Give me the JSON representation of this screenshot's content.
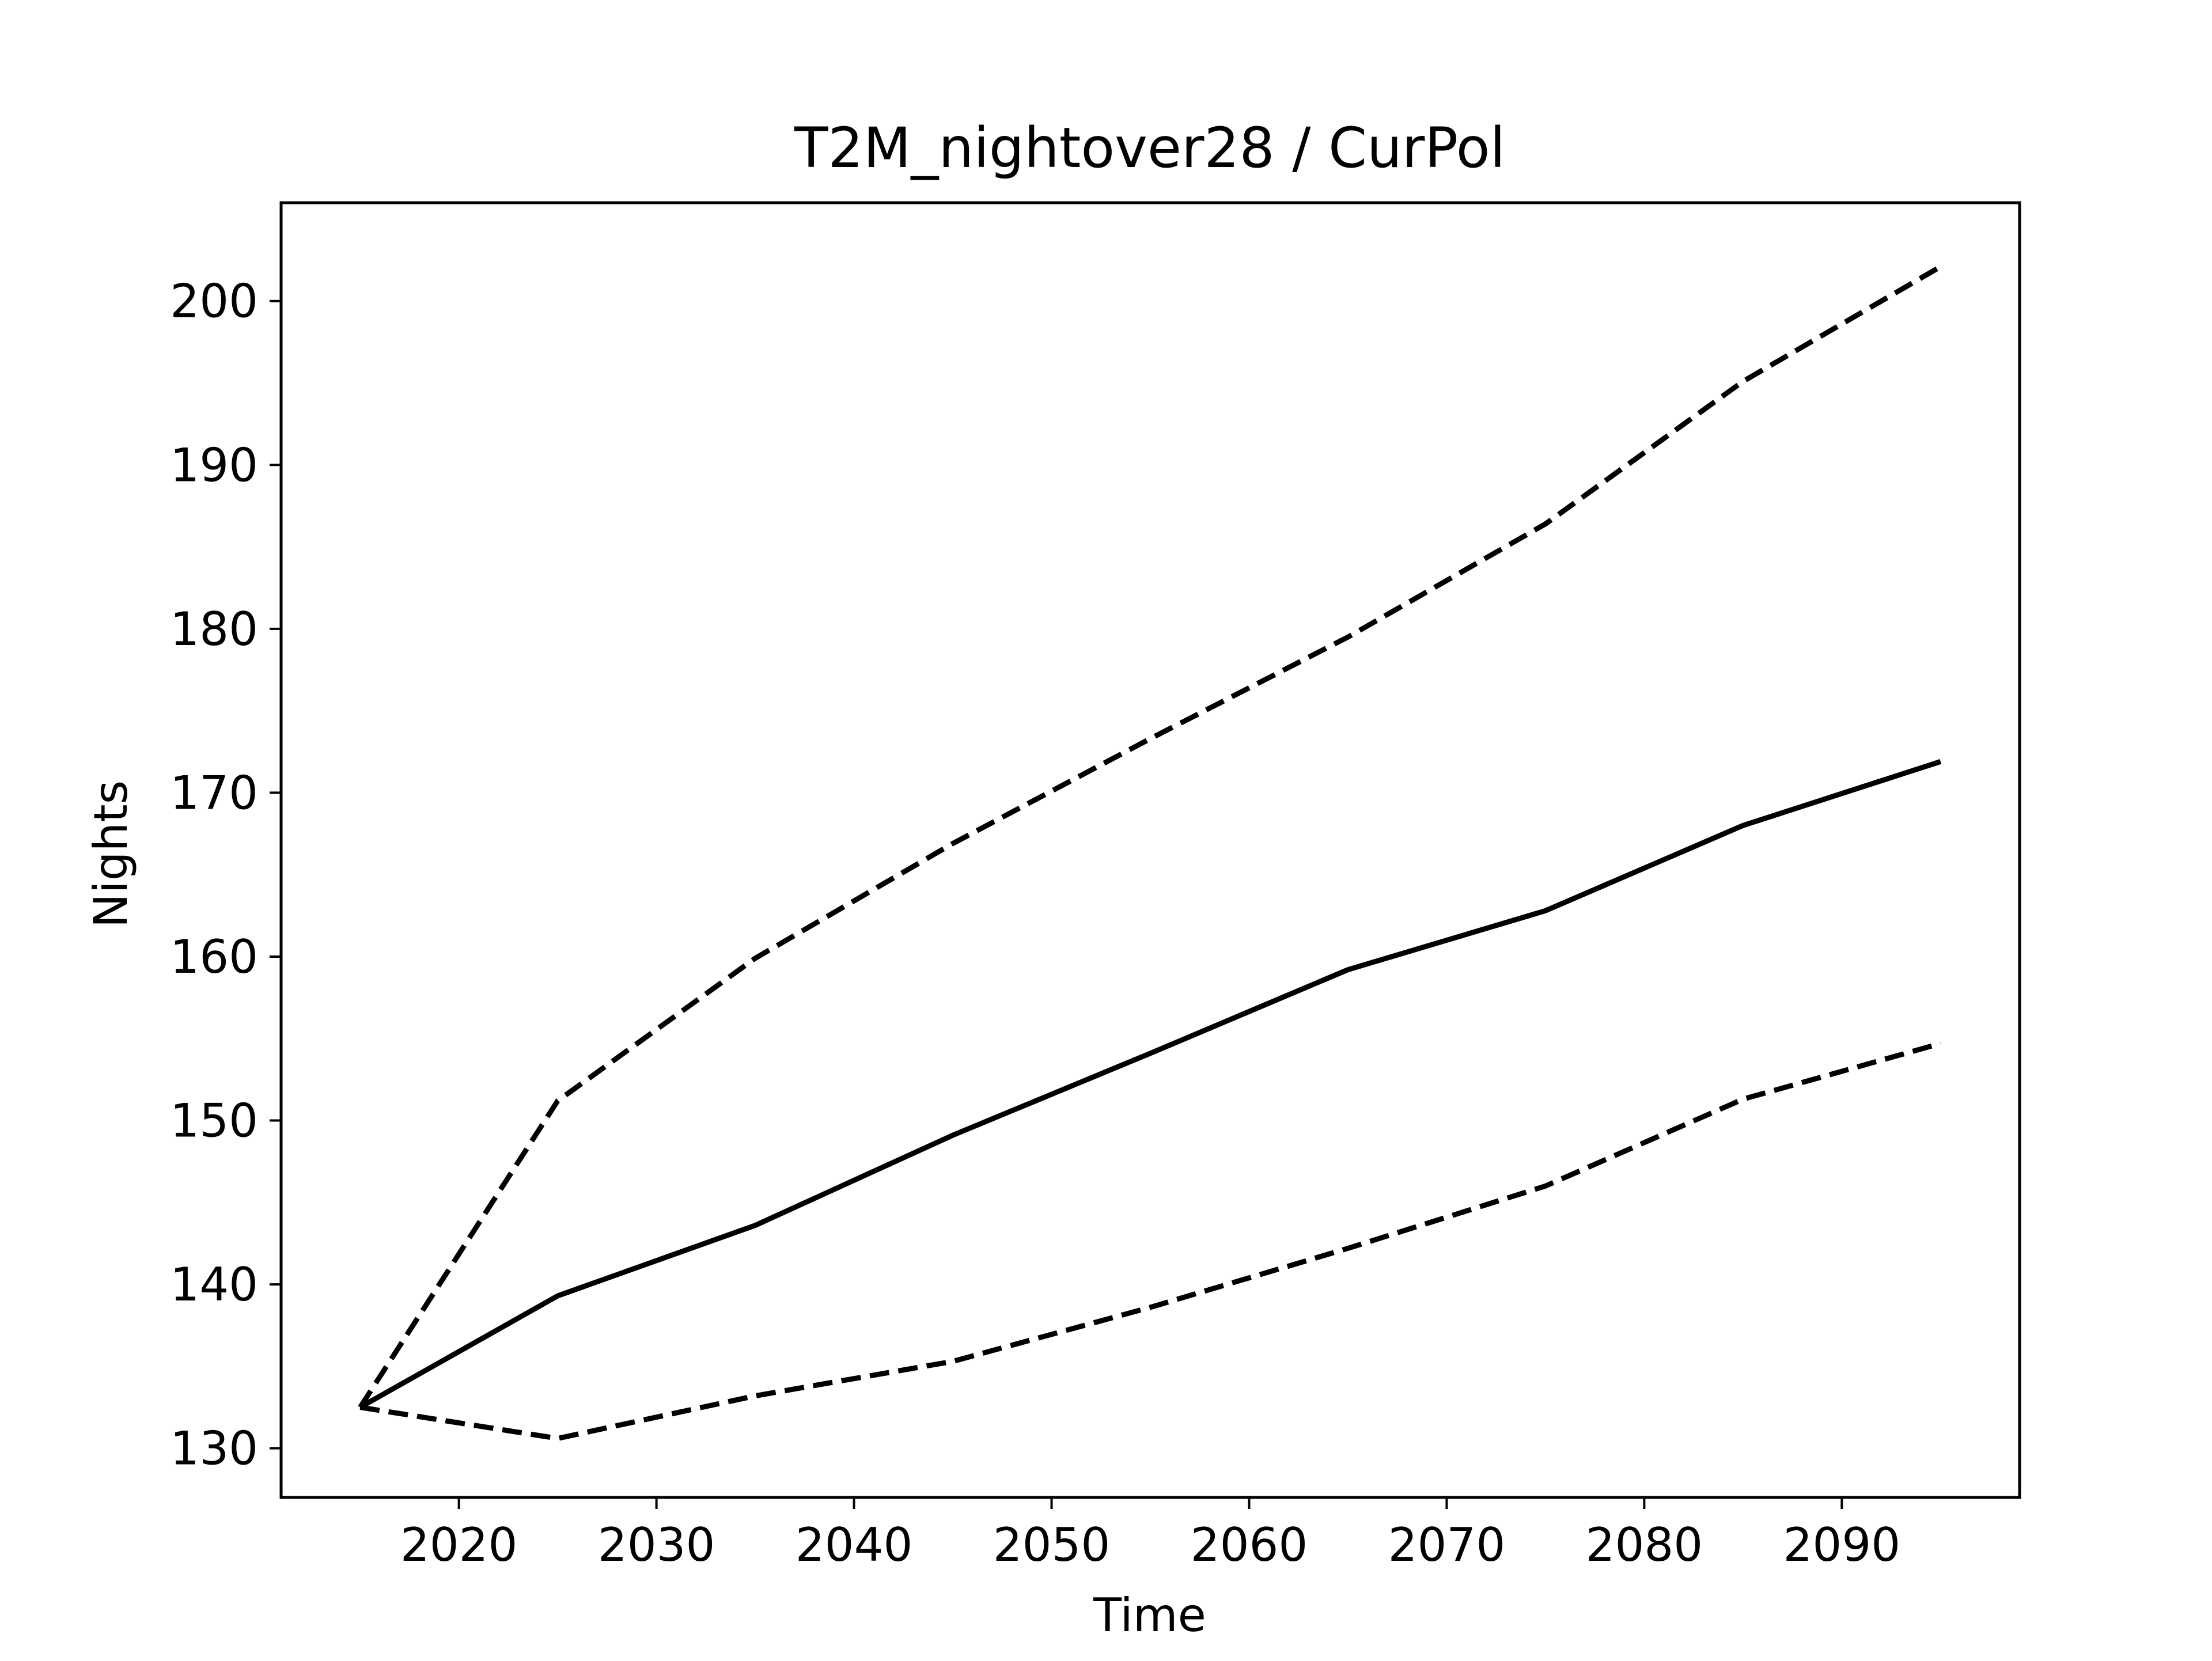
{
  "chart_data": {
    "type": "line",
    "title": "T2M_nightover28 / CurPol",
    "xlabel": "Time",
    "ylabel": "Nights",
    "xlim": [
      2011,
      2099
    ],
    "ylim": [
      127,
      206
    ],
    "x_ticks": [
      2020,
      2030,
      2040,
      2050,
      2060,
      2070,
      2080,
      2090
    ],
    "y_ticks": [
      130,
      140,
      150,
      160,
      170,
      180,
      190,
      200
    ],
    "x_tick_labels": [
      "2020",
      "2030",
      "2040",
      "2050",
      "2060",
      "2070",
      "2080",
      "2090"
    ],
    "y_tick_labels": [
      "130",
      "140",
      "150",
      "160",
      "170",
      "180",
      "190",
      "200"
    ],
    "grid": false,
    "legend": "none",
    "x": [
      2015,
      2025,
      2035,
      2045,
      2055,
      2065,
      2075,
      2085,
      2095
    ],
    "series": [
      {
        "style": "solid",
        "color": "#000000",
        "values": [
          132.5,
          139.3,
          143.6,
          149.1,
          154.1,
          159.2,
          162.8,
          168.0,
          171.9
        ]
      },
      {
        "style": "dashed",
        "color": "#000000",
        "values": [
          132.5,
          151.2,
          159.9,
          166.9,
          173.3,
          179.5,
          186.4,
          195.1,
          202.1
        ]
      },
      {
        "style": "dashed",
        "color": "#000000",
        "values": [
          132.5,
          130.6,
          133.2,
          135.3,
          138.6,
          142.2,
          146.0,
          151.3,
          154.7
        ]
      }
    ]
  }
}
